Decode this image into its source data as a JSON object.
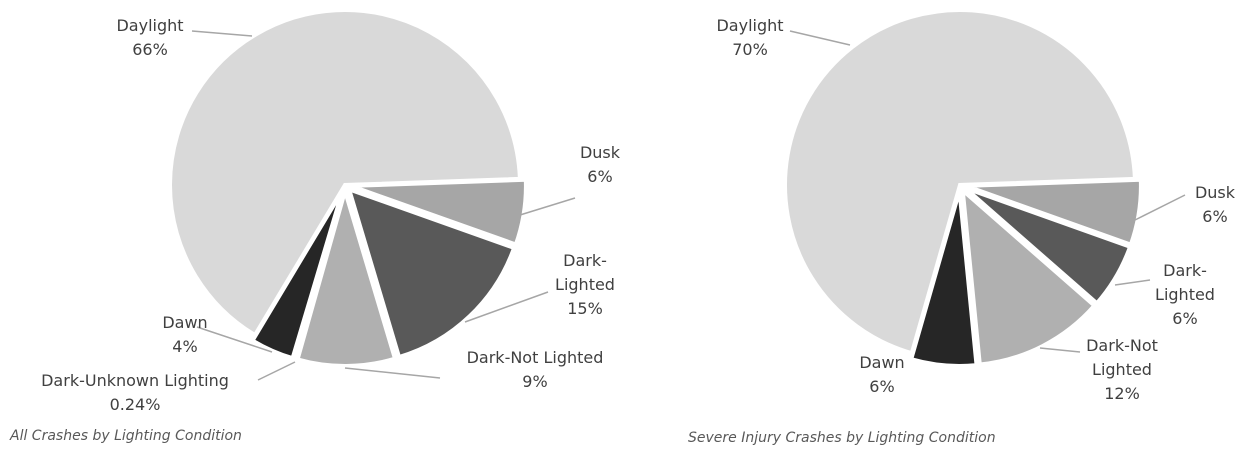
{
  "chart_data": [
    {
      "type": "pie",
      "title": "All Crashes by Lighting Condition",
      "categories": [
        "Dusk",
        "Dark-Lighted",
        "Dark-Not Lighted",
        "Dark-Unknown Lighting",
        "Dawn",
        "Daylight"
      ],
      "values": [
        6,
        15,
        9,
        0.24,
        4,
        66
      ],
      "value_labels": [
        "6%",
        "15%",
        "9%",
        "0.24%",
        "4%",
        "66%"
      ],
      "colors": [
        "#a6a6a6",
        "#595959",
        "#b0b0b0",
        "#7f7f7f",
        "#262626",
        "#d9d9d9"
      ]
    },
    {
      "type": "pie",
      "title": "Severe Injury Crashes by Lighting Condition",
      "categories": [
        "Dusk",
        "Dark-Lighted",
        "Dark-Not Lighted",
        "Dawn",
        "Daylight"
      ],
      "values": [
        6,
        6,
        12,
        6,
        70
      ],
      "value_labels": [
        "6%",
        "6%",
        "12%",
        "6%",
        "70%"
      ],
      "colors": [
        "#a6a6a6",
        "#595959",
        "#b0b0b0",
        "#262626",
        "#d9d9d9"
      ]
    }
  ]
}
